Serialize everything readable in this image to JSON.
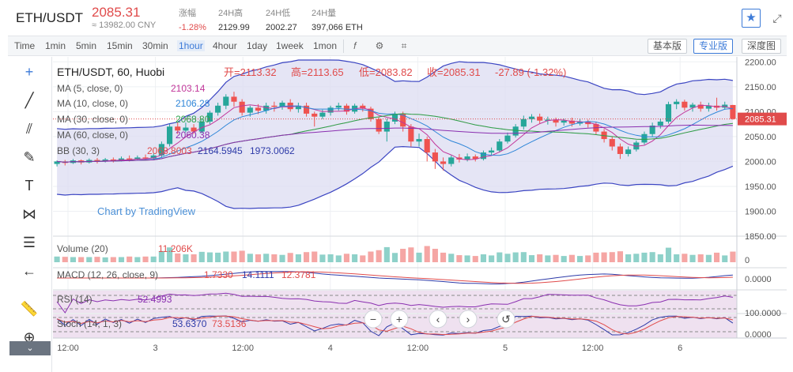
{
  "header": {
    "pair": "ETH/USDT",
    "price": "2085.31",
    "cny": "≈ 13982.00 CNY",
    "stats": [
      {
        "label": "涨幅",
        "value": "-1.28%",
        "red": true
      },
      {
        "label": "24H高",
        "value": "2129.99",
        "red": false
      },
      {
        "label": "24H低",
        "value": "2002.27",
        "red": false
      },
      {
        "label": "24H量",
        "value": "397,066 ETH",
        "red": false
      }
    ]
  },
  "toolbar": {
    "timeframes": [
      "Time",
      "1min",
      "5min",
      "15min",
      "30min",
      "1hour",
      "4hour",
      "1day",
      "1week",
      "1mon"
    ],
    "active_timeframe": "1hour",
    "buttons": [
      "基本版",
      "专业版",
      "深度图"
    ],
    "active_button": "专业版"
  },
  "legend": {
    "title": "ETH/USDT, 60, Huobi",
    "ohlc": [
      {
        "label": "开=",
        "value": "2113.32"
      },
      {
        "label": "高=",
        "value": "2113.65"
      },
      {
        "label": "低=",
        "value": "2083.82"
      },
      {
        "label": "收=",
        "value": "2085.31"
      }
    ],
    "change": "-27.89 (-1.32%)",
    "indicators": [
      {
        "name": "MA (5, close, 0)",
        "values": [
          "2103.14"
        ],
        "colors": [
          "#c2379a"
        ]
      },
      {
        "name": "MA (10, close, 0)",
        "values": [
          "2106.28"
        ],
        "colors": [
          "#2f86d8"
        ]
      },
      {
        "name": "MA (30, close, 0)",
        "values": [
          "2068.80"
        ],
        "colors": [
          "#2aa24a"
        ]
      },
      {
        "name": "MA (60, close, 0)",
        "values": [
          "2060.38"
        ],
        "colors": [
          "#8a2fb0"
        ]
      },
      {
        "name": "BB (30, 3)",
        "values": [
          "2068.8003",
          "2164.5945",
          "1973.0062"
        ],
        "colors": [
          "#e04b4b",
          "#2d3aa8",
          "#2d3aa8"
        ]
      }
    ]
  },
  "watermark": "Chart by TradingView",
  "sub_legends": {
    "volume": {
      "name": "Volume (20)",
      "value": "11.206K"
    },
    "macd": {
      "name": "MACD (12, 26, close, 9)",
      "values": [
        "1.7330",
        "14.1111",
        "12.3781"
      ]
    },
    "rsi": {
      "name": "RSI (14)",
      "value": "52.4993"
    },
    "stoch": {
      "name": "Stoch (14, 1, 3)",
      "values": [
        "53.6370",
        "73.5136"
      ]
    }
  },
  "price_axis": {
    "ticks": [
      "2200.00",
      "2150.00",
      "2100.00",
      "2050.00",
      "2000.00",
      "1950.00",
      "1900.00",
      "1850.00"
    ],
    "current_label": "2085.31"
  },
  "sub_axis": {
    "volume": "0",
    "macd": "0.0000",
    "stoch_top": "100.0000",
    "stoch_bottom": "0.0000"
  },
  "time_axis": {
    "labels": [
      "12:00",
      "3",
      "12:00",
      "4",
      "12:00",
      "5",
      "12:00",
      "6"
    ]
  },
  "colors": {
    "up": "#26a69a",
    "down": "#ef5350",
    "accent": "#3d7bd8"
  },
  "chart_data": {
    "type": "candlestick",
    "title": "ETH/USDT, 60, Huobi",
    "x_labels": [
      "12:00",
      "3",
      "12:00",
      "4",
      "12:00",
      "5",
      "12:00",
      "6"
    ],
    "ylim": [
      1850,
      2210
    ],
    "current_price": 2085.31,
    "candles": [
      [
        1995,
        2000,
        1990,
        2002
      ],
      [
        2000,
        1997,
        1992,
        2003
      ],
      [
        1997,
        2002,
        1995,
        2005
      ],
      [
        2002,
        1998,
        1994,
        2004
      ],
      [
        1998,
        2003,
        1996,
        2006
      ],
      [
        2003,
        2000,
        1996,
        2007
      ],
      [
        2000,
        2004,
        1998,
        2007
      ],
      [
        2004,
        2002,
        1998,
        2008
      ],
      [
        2002,
        2006,
        2000,
        2010
      ],
      [
        2006,
        2004,
        2000,
        2012
      ],
      [
        2004,
        2008,
        2002,
        2012
      ],
      [
        2008,
        2006,
        2002,
        2014
      ],
      [
        2006,
        2012,
        2004,
        2016
      ],
      [
        2012,
        2035,
        2008,
        2040
      ],
      [
        2035,
        2070,
        2030,
        2075
      ],
      [
        2070,
        2062,
        2055,
        2078
      ],
      [
        2062,
        2068,
        2058,
        2078
      ],
      [
        2068,
        2060,
        2055,
        2075
      ],
      [
        2060,
        2080,
        2056,
        2085
      ],
      [
        2080,
        2098,
        2075,
        2102
      ],
      [
        2098,
        2112,
        2092,
        2118
      ],
      [
        2112,
        2130,
        2105,
        2135
      ],
      [
        2130,
        2120,
        2110,
        2140
      ],
      [
        2120,
        2098,
        2092,
        2125
      ],
      [
        2098,
        2108,
        2090,
        2112
      ],
      [
        2108,
        2102,
        2095,
        2115
      ],
      [
        2102,
        2112,
        2096,
        2118
      ],
      [
        2112,
        2110,
        2100,
        2120
      ],
      [
        2110,
        2118,
        2104,
        2122
      ],
      [
        2118,
        2105,
        2100,
        2125
      ],
      [
        2105,
        2112,
        2098,
        2118
      ],
      [
        2112,
        2096,
        2090,
        2118
      ],
      [
        2096,
        2090,
        2070,
        2100
      ],
      [
        2090,
        2098,
        2085,
        2104
      ],
      [
        2098,
        2108,
        2092,
        2112
      ],
      [
        2108,
        2112,
        2102,
        2118
      ],
      [
        2112,
        2100,
        2094,
        2116
      ],
      [
        2100,
        2112,
        2096,
        2116
      ],
      [
        2112,
        2106,
        2100,
        2116
      ],
      [
        2106,
        2085,
        2080,
        2110
      ],
      [
        2085,
        2060,
        2055,
        2090
      ],
      [
        2060,
        2080,
        2040,
        2086
      ],
      [
        2080,
        2095,
        2075,
        2100
      ],
      [
        2095,
        2070,
        2060,
        2100
      ],
      [
        2070,
        2040,
        2030,
        2075
      ],
      [
        2040,
        2045,
        2030,
        2056
      ],
      [
        2045,
        2018,
        2000,
        2050
      ],
      [
        2018,
        2000,
        1985,
        2025
      ],
      [
        2000,
        1995,
        1982,
        2008
      ],
      [
        1995,
        2008,
        1990,
        2012
      ],
      [
        2008,
        2004,
        1998,
        2015
      ],
      [
        2004,
        2010,
        2000,
        2016
      ],
      [
        2010,
        2005,
        2000,
        2014
      ],
      [
        2005,
        2018,
        2002,
        2022
      ],
      [
        2018,
        2022,
        2012,
        2028
      ],
      [
        2022,
        2040,
        2018,
        2045
      ],
      [
        2040,
        2052,
        2036,
        2058
      ],
      [
        2052,
        2070,
        2048,
        2075
      ],
      [
        2070,
        2085,
        2064,
        2092
      ],
      [
        2085,
        2090,
        2078,
        2095
      ],
      [
        2090,
        2082,
        2076,
        2096
      ],
      [
        2082,
        2084,
        2074,
        2090
      ],
      [
        2084,
        2078,
        2070,
        2088
      ],
      [
        2078,
        2082,
        2072,
        2086
      ],
      [
        2082,
        2076,
        2070,
        2088
      ],
      [
        2076,
        2080,
        2072,
        2086
      ],
      [
        2080,
        2075,
        2068,
        2084
      ],
      [
        2075,
        2060,
        2054,
        2080
      ],
      [
        2060,
        2045,
        2038,
        2065
      ],
      [
        2045,
        2030,
        2022,
        2050
      ],
      [
        2030,
        2015,
        2005,
        2036
      ],
      [
        2015,
        2024,
        2010,
        2030
      ],
      [
        2024,
        2038,
        2020,
        2042
      ],
      [
        2038,
        2055,
        2034,
        2060
      ],
      [
        2055,
        2072,
        2050,
        2078
      ],
      [
        2072,
        2080,
        2066,
        2086
      ],
      [
        2080,
        2115,
        2076,
        2120
      ],
      [
        2115,
        2120,
        2105,
        2125
      ],
      [
        2120,
        2108,
        2102,
        2124
      ],
      [
        2108,
        2114,
        2100,
        2118
      ],
      [
        2114,
        2106,
        2100,
        2120
      ],
      [
        2106,
        2112,
        2100,
        2118
      ],
      [
        2112,
        2108,
        2102,
        2128
      ],
      [
        2108,
        2114,
        2104,
        2120
      ],
      [
        2113.32,
        2085.31,
        2083.82,
        2113.65
      ]
    ]
  }
}
